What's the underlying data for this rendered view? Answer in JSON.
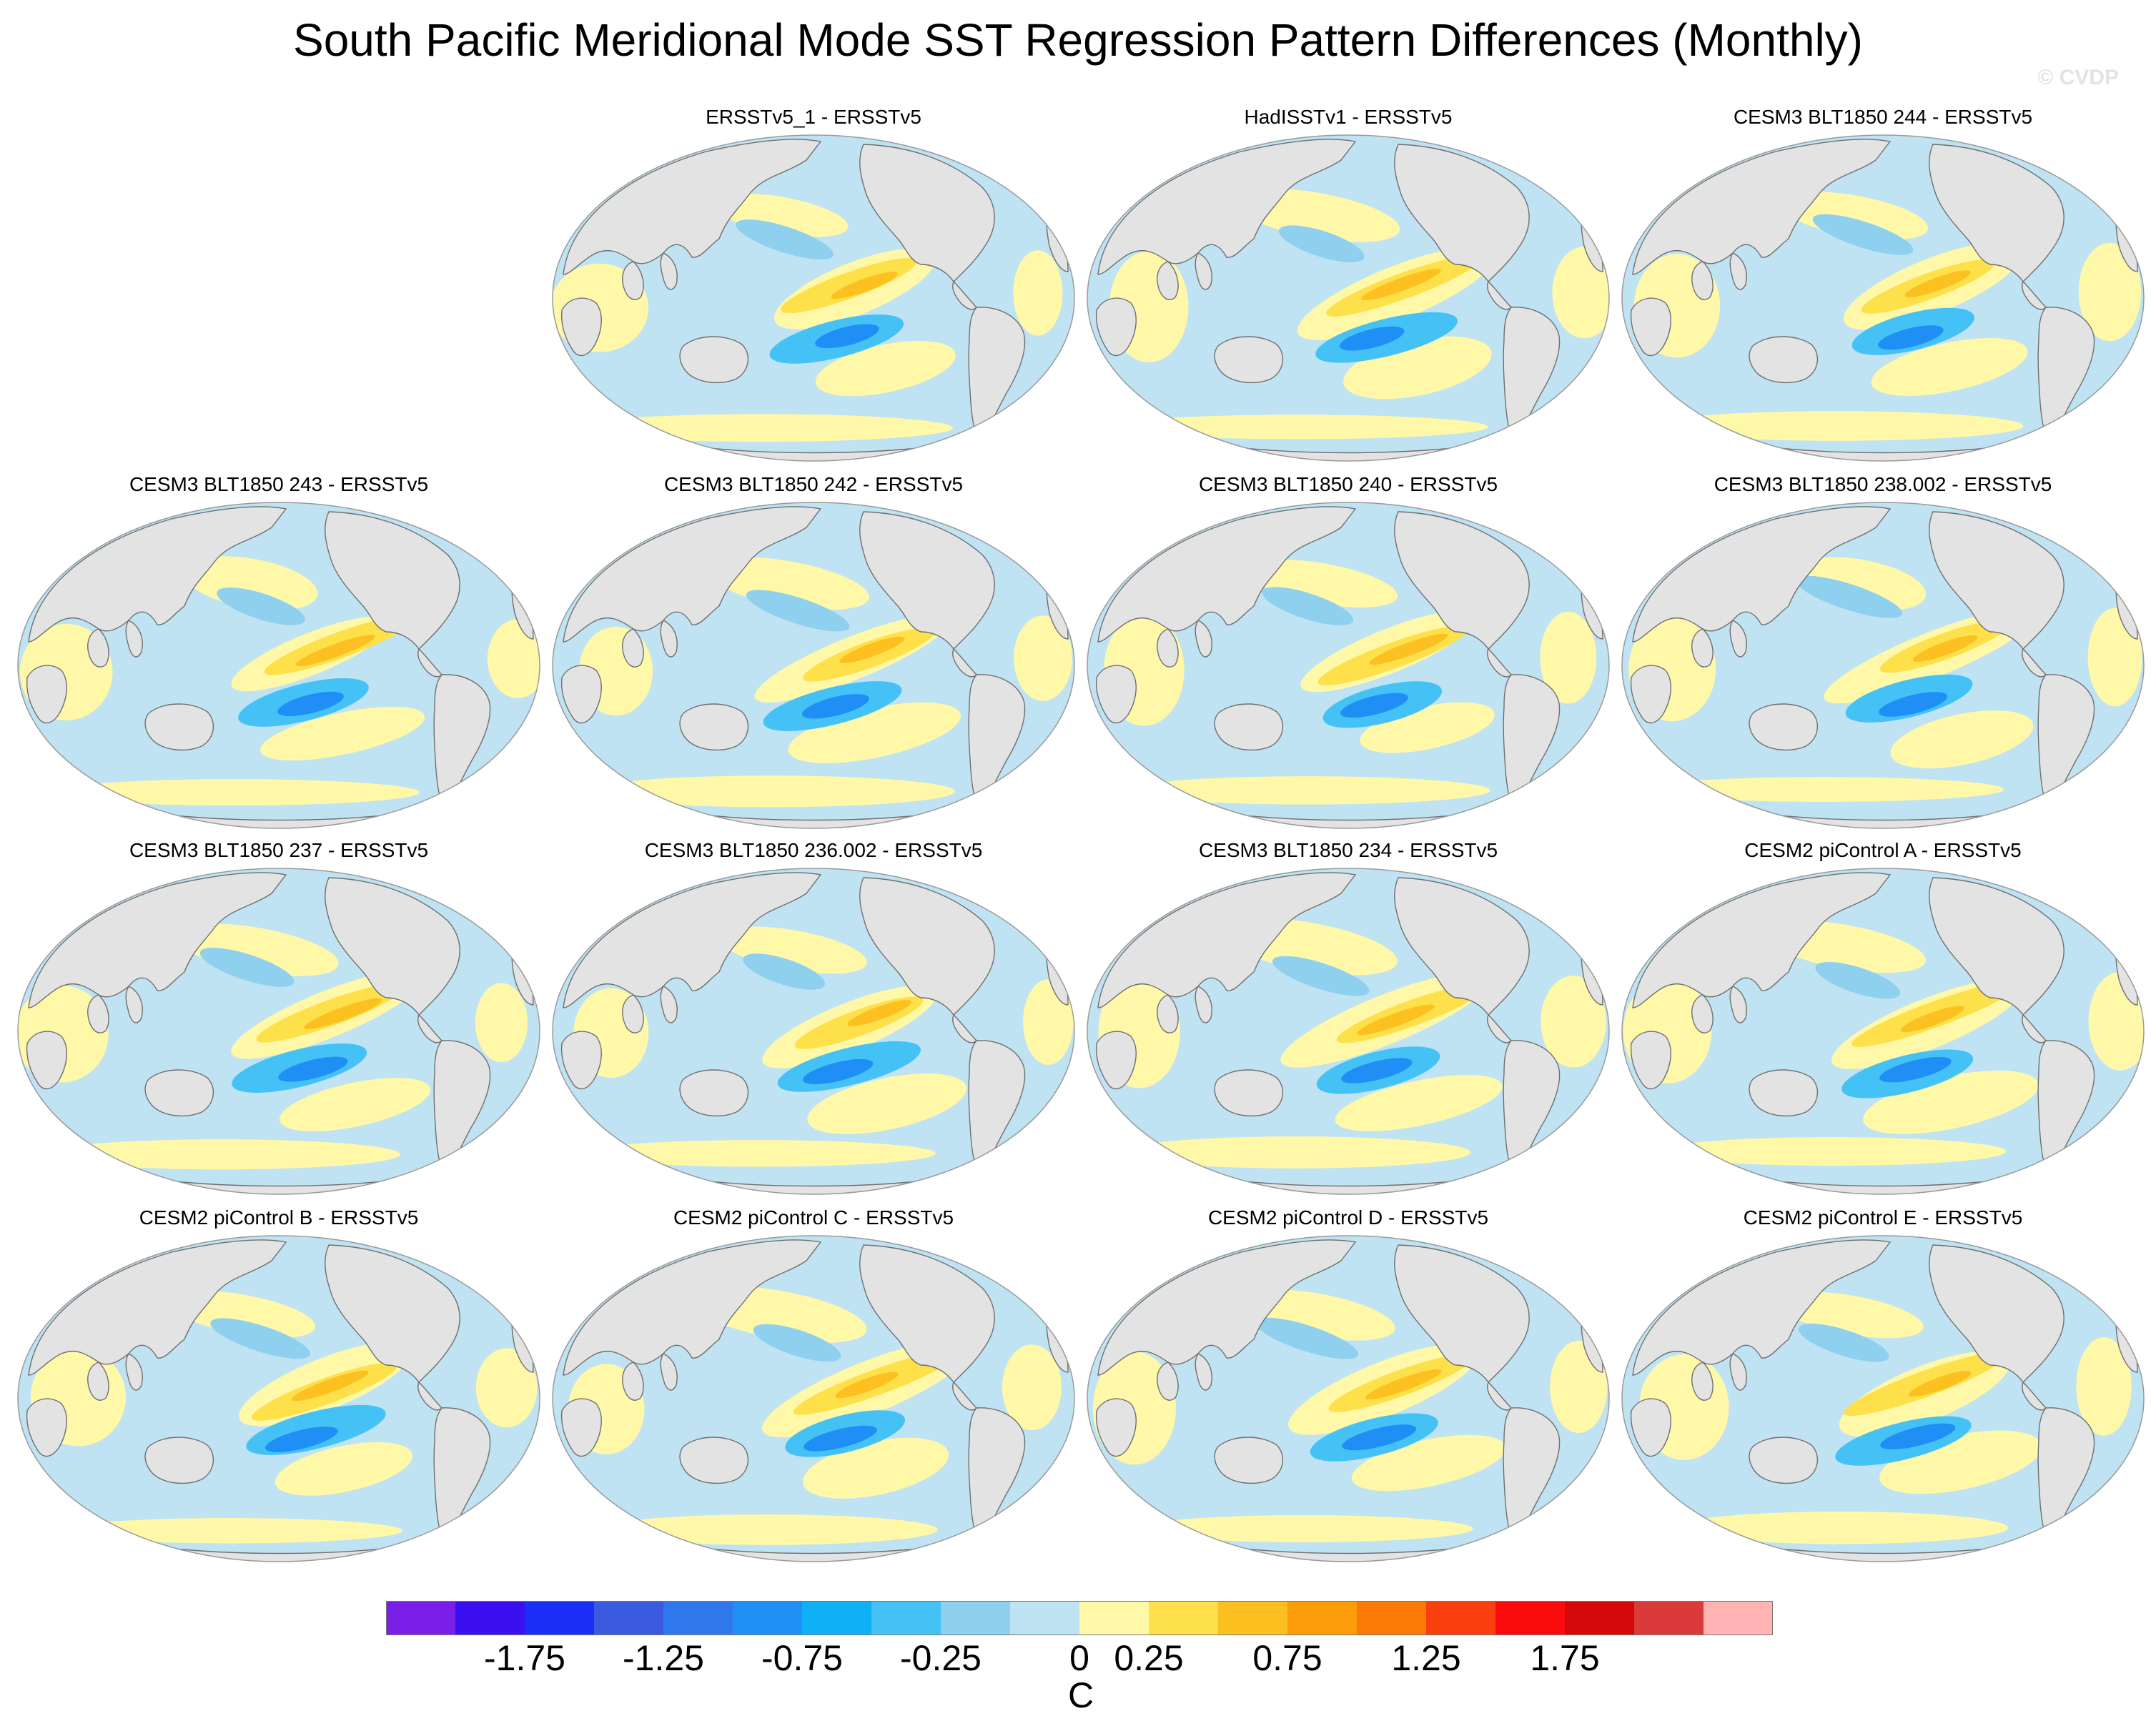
{
  "figure": {
    "title": "South Pacific Meridional Mode SST Regression Pattern Differences (Monthly)",
    "watermark": "© CVDP"
  },
  "panels": [
    {
      "title": "ERSSTv5_1 - ERSSTv5",
      "variant": 1
    },
    {
      "title": "HadISSTv1 - ERSSTv5",
      "variant": 2
    },
    {
      "title": "CESM3 BLT1850 244 - ERSSTv5",
      "variant": 3
    },
    {
      "title": "CESM3 BLT1850 243 - ERSSTv5",
      "variant": 4
    },
    {
      "title": "CESM3 BLT1850 242 - ERSSTv5",
      "variant": 5
    },
    {
      "title": "CESM3 BLT1850 240 - ERSSTv5",
      "variant": 6
    },
    {
      "title": "CESM3 BLT1850 238.002 - ERSSTv5",
      "variant": 7
    },
    {
      "title": "CESM3 BLT1850 237 - ERSSTv5",
      "variant": 8
    },
    {
      "title": "CESM3 BLT1850 236.002 - ERSSTv5",
      "variant": 9
    },
    {
      "title": "CESM3 BLT1850 234 - ERSSTv5",
      "variant": 10
    },
    {
      "title": "CESM2 piControl A - ERSSTv5",
      "variant": 11
    },
    {
      "title": "CESM2 piControl B - ERSSTv5",
      "variant": 12
    },
    {
      "title": "CESM2 piControl C - ERSSTv5",
      "variant": 13
    },
    {
      "title": "CESM2 piControl D - ERSSTv5",
      "variant": 14
    },
    {
      "title": "CESM2 piControl E - ERSSTv5",
      "variant": 15
    }
  ],
  "colorbar": {
    "unit": "C",
    "tick_labels": [
      "-1.75",
      "-1.25",
      "-0.75",
      "-0.25",
      "0",
      "0.25",
      "0.75",
      "1.25",
      "1.75"
    ],
    "colors": [
      "#7a1fe8",
      "#3a10f0",
      "#1a2ef5",
      "#3a5be0",
      "#2f78eb",
      "#1f8ff5",
      "#0fb0f5",
      "#45c2f5",
      "#8fd0ee",
      "#bfe3f3",
      "#fff8a8",
      "#fde04a",
      "#fcc020",
      "#fb9d0b",
      "#fb7a05",
      "#fb4010",
      "#fb0c0c",
      "#d40808",
      "#da3a3a",
      "#ffb3b3"
    ]
  },
  "map_style": {
    "land": "#e3e3e3",
    "coast": "#6f6f6f",
    "ocean_neutral_neg": "#bfe3f3",
    "ocean_neutral_pos": "#fff8a8"
  }
}
